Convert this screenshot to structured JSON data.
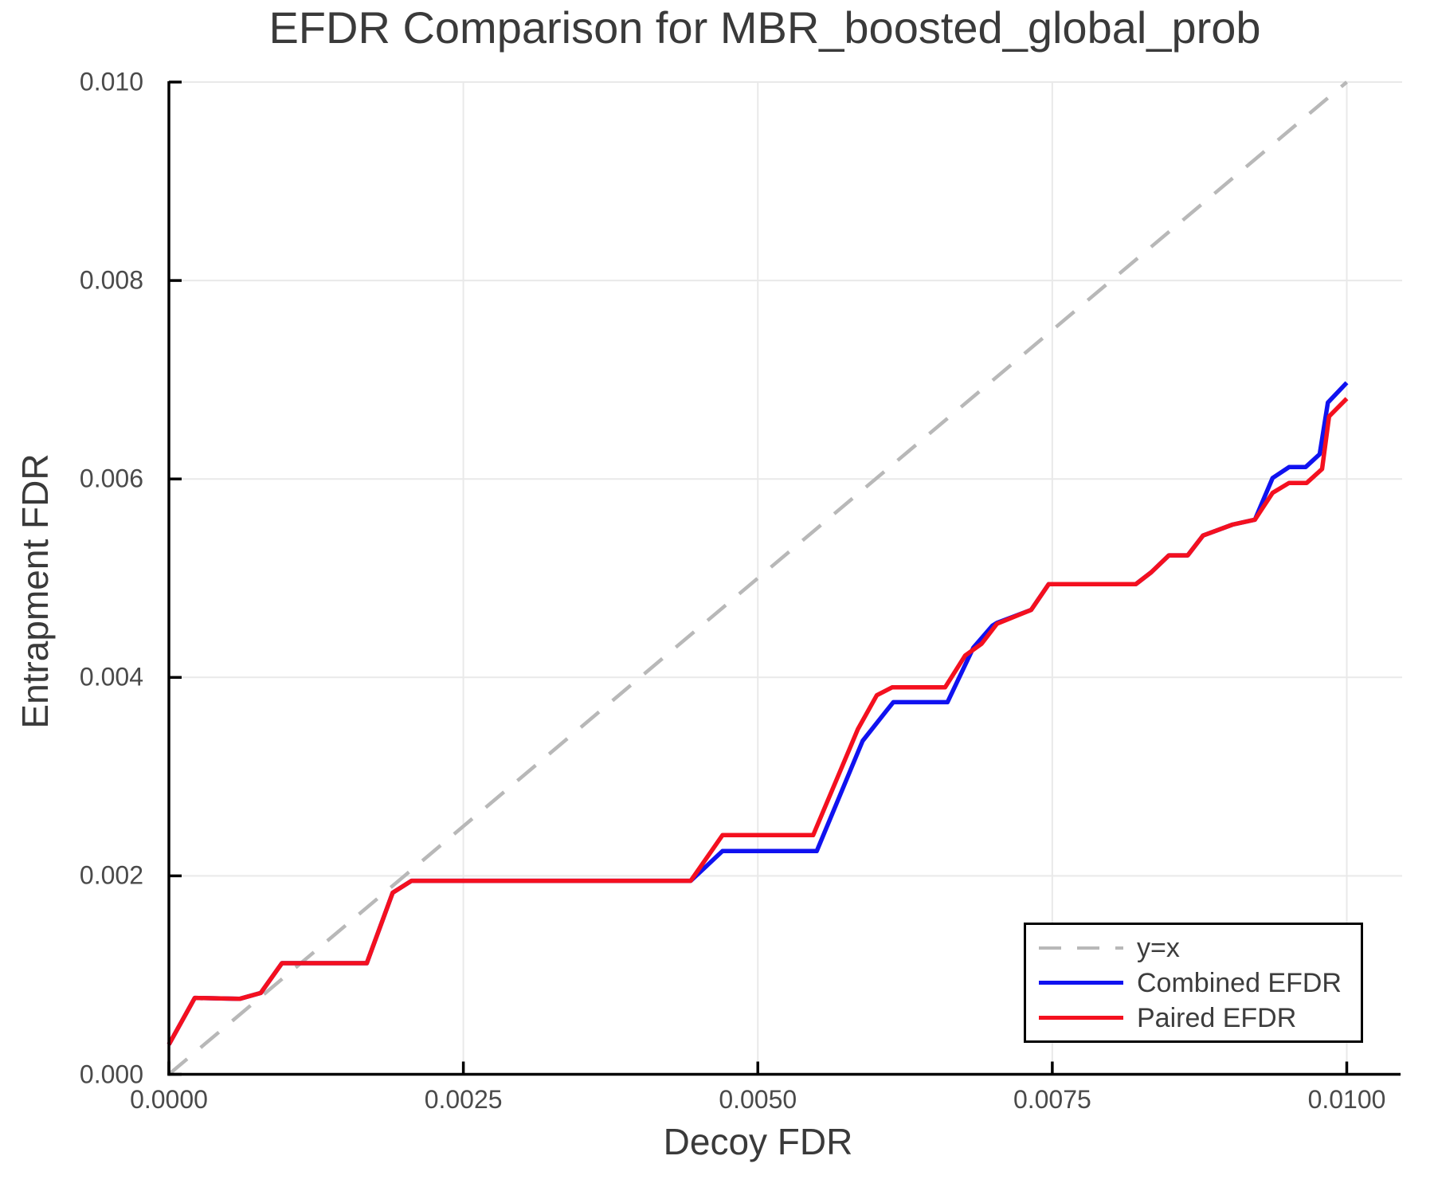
{
  "title": "EFDR Comparison for MBR_boosted_global_prob",
  "axes": {
    "xlabel": "Decoy FDR",
    "ylabel": "Entrapment FDR",
    "x_ticks": {
      "values": [
        0.0,
        0.0025,
        0.005,
        0.0075,
        0.01
      ],
      "labels": [
        "0.0000",
        "0.0025",
        "0.0050",
        "0.0075",
        "0.0100"
      ]
    },
    "y_ticks": {
      "values": [
        0.0,
        0.002,
        0.004,
        0.006,
        0.008,
        0.01
      ],
      "labels": [
        "0.000",
        "0.002",
        "0.004",
        "0.006",
        "0.008",
        "0.010"
      ]
    }
  },
  "legend": {
    "entries": [
      {
        "label": "y=x",
        "color": "#b8b8b8",
        "dashed": true
      },
      {
        "label": "Combined EFDR",
        "color": "#1012f0",
        "dashed": false
      },
      {
        "label": "Paired EFDR",
        "color": "#f4101f",
        "dashed": false
      }
    ]
  },
  "colors": {
    "grid": "#e9e9e9",
    "spine": "#000000",
    "tick_label": "#4a4a4a",
    "text": "#3a3a3a"
  },
  "chart_data": {
    "type": "line",
    "title": "EFDR Comparison for MBR_boosted_global_prob",
    "xlabel": "Decoy FDR",
    "ylabel": "Entrapment FDR",
    "xlim": [
      0.0,
      0.01
    ],
    "ylim": [
      0.0,
      0.01
    ],
    "grid": true,
    "legend_position": "lower right",
    "series": [
      {
        "name": "y=x",
        "color": "#b8b8b8",
        "style": "dashed",
        "points": [
          [
            0.0,
            0.0
          ],
          [
            0.01,
            0.01
          ]
        ]
      },
      {
        "name": "Combined EFDR",
        "color": "#1012f0",
        "style": "solid",
        "points": [
          [
            0.0,
            0.0003
          ],
          [
            0.00022,
            0.00077
          ],
          [
            0.0006,
            0.00076
          ],
          [
            0.00078,
            0.00082
          ],
          [
            0.00096,
            0.00112
          ],
          [
            0.00168,
            0.00112
          ],
          [
            0.0019,
            0.00183
          ],
          [
            0.00206,
            0.00195
          ],
          [
            0.00443,
            0.00195
          ],
          [
            0.0047,
            0.00225
          ],
          [
            0.0055,
            0.00225
          ],
          [
            0.00589,
            0.00336
          ],
          [
            0.00609,
            0.00366
          ],
          [
            0.00615,
            0.00375
          ],
          [
            0.00661,
            0.00375
          ],
          [
            0.00683,
            0.0043
          ],
          [
            0.00699,
            0.00452
          ],
          [
            0.00703,
            0.00455
          ],
          [
            0.00732,
            0.00468
          ],
          [
            0.00747,
            0.00494
          ],
          [
            0.00821,
            0.00494
          ],
          [
            0.00834,
            0.00506
          ],
          [
            0.00849,
            0.00523
          ],
          [
            0.00865,
            0.00523
          ],
          [
            0.00878,
            0.00543
          ],
          [
            0.00903,
            0.00554
          ],
          [
            0.00922,
            0.00559
          ],
          [
            0.00937,
            0.00601
          ],
          [
            0.00951,
            0.00612
          ],
          [
            0.00965,
            0.00612
          ],
          [
            0.00977,
            0.00625
          ],
          [
            0.00984,
            0.00677
          ],
          [
            0.01,
            0.00697
          ]
        ]
      },
      {
        "name": "Paired EFDR",
        "color": "#f4101f",
        "style": "solid",
        "points": [
          [
            0.0,
            0.0003
          ],
          [
            0.00022,
            0.00077
          ],
          [
            0.0006,
            0.00076
          ],
          [
            0.00078,
            0.00082
          ],
          [
            0.00096,
            0.00112
          ],
          [
            0.00168,
            0.00112
          ],
          [
            0.0019,
            0.00183
          ],
          [
            0.00206,
            0.00195
          ],
          [
            0.00443,
            0.00195
          ],
          [
            0.0047,
            0.00241
          ],
          [
            0.00547,
            0.00241
          ],
          [
            0.00585,
            0.00348
          ],
          [
            0.00601,
            0.00382
          ],
          [
            0.00614,
            0.0039
          ],
          [
            0.00659,
            0.0039
          ],
          [
            0.00676,
            0.00422
          ],
          [
            0.0069,
            0.00434
          ],
          [
            0.00703,
            0.00454
          ],
          [
            0.00732,
            0.00468
          ],
          [
            0.00747,
            0.00494
          ],
          [
            0.00821,
            0.00494
          ],
          [
            0.00834,
            0.00506
          ],
          [
            0.00849,
            0.00523
          ],
          [
            0.00865,
            0.00523
          ],
          [
            0.00878,
            0.00543
          ],
          [
            0.00903,
            0.00554
          ],
          [
            0.00922,
            0.00559
          ],
          [
            0.00937,
            0.00586
          ],
          [
            0.00951,
            0.00596
          ],
          [
            0.00966,
            0.00596
          ],
          [
            0.00979,
            0.0061
          ],
          [
            0.00985,
            0.00663
          ],
          [
            0.01,
            0.00681
          ]
        ]
      }
    ]
  }
}
